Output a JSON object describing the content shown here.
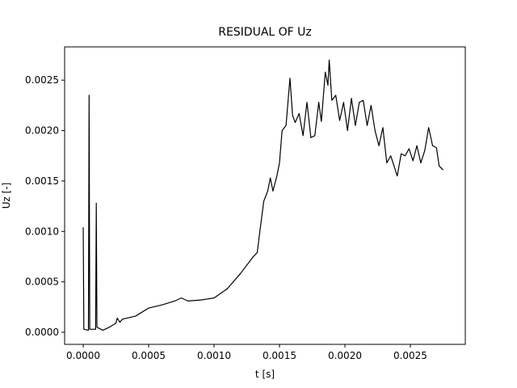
{
  "chart_data": {
    "type": "line",
    "title": "RESIDUAL OF Uz",
    "x_label": "t [s]",
    "y_label": "Uz [-]",
    "color": "#000000",
    "x": [
      0.0,
      5e-06,
      4e-05,
      4.5e-05,
      5e-05,
      9.5e-05,
      0.0001,
      0.000105,
      0.00015,
      0.0002,
      0.00025,
      0.00026,
      0.00028,
      0.0003,
      0.0004,
      0.0005,
      0.0006,
      0.0007,
      0.00075,
      0.0008,
      0.0009,
      0.001,
      0.0011,
      0.0012,
      0.0013,
      0.00133,
      0.00135,
      0.00138,
      0.00141,
      0.00143,
      0.00145,
      0.00148,
      0.0015,
      0.00152,
      0.00155,
      0.00158,
      0.0016,
      0.00162,
      0.00165,
      0.00168,
      0.00171,
      0.00174,
      0.00177,
      0.0018,
      0.00182,
      0.00185,
      0.00187,
      0.00188,
      0.0019,
      0.00193,
      0.00196,
      0.00199,
      0.00202,
      0.00205,
      0.00208,
      0.00211,
      0.00214,
      0.00217,
      0.0022,
      0.00223,
      0.00226,
      0.00229,
      0.00232,
      0.00235,
      0.00238,
      0.0024,
      0.00243,
      0.00246,
      0.00249,
      0.00252,
      0.00255,
      0.00258,
      0.00261,
      0.00264,
      0.00267,
      0.0027,
      0.00272,
      0.00275
    ],
    "values": [
      0.00104,
      3e-05,
      2e-05,
      0.00235,
      3e-05,
      3e-05,
      0.00128,
      5e-05,
      2e-05,
      5e-05,
      9e-05,
      0.00014,
      0.0001,
      0.00013,
      0.00016,
      0.00024,
      0.00027,
      0.00031,
      0.00034,
      0.00031,
      0.00032,
      0.00034,
      0.00043,
      0.00058,
      0.00075,
      0.00079,
      0.001,
      0.0013,
      0.0014,
      0.00153,
      0.0014,
      0.00155,
      0.00168,
      0.002,
      0.00205,
      0.00252,
      0.00215,
      0.00208,
      0.00217,
      0.00195,
      0.00228,
      0.00193,
      0.00195,
      0.00228,
      0.00209,
      0.00258,
      0.00245,
      0.0027,
      0.0023,
      0.00235,
      0.0021,
      0.00228,
      0.002,
      0.00232,
      0.00205,
      0.00228,
      0.0023,
      0.00205,
      0.00225,
      0.002,
      0.00185,
      0.00203,
      0.00168,
      0.00175,
      0.00163,
      0.00155,
      0.00177,
      0.00175,
      0.00182,
      0.0017,
      0.00185,
      0.00168,
      0.0018,
      0.00203,
      0.00185,
      0.00183,
      0.00165,
      0.00161
    ],
    "xlim": [
      -0.000142,
      0.00292
    ],
    "ylim": [
      -0.00012,
      0.00283
    ],
    "xticks": [
      {
        "value": 0,
        "label": "0.0000"
      },
      {
        "value": 0.0005,
        "label": "0.0005"
      },
      {
        "value": 0.001,
        "label": "0.0010"
      },
      {
        "value": 0.0015,
        "label": "0.0015"
      },
      {
        "value": 0.002,
        "label": "0.0020"
      },
      {
        "value": 0.0025,
        "label": "0.0025"
      }
    ],
    "yticks": [
      {
        "value": 0,
        "label": "0.0000"
      },
      {
        "value": 0.0005,
        "label": "0.0005"
      },
      {
        "value": 0.001,
        "label": "0.0010"
      },
      {
        "value": 0.0015,
        "label": "0.0015"
      },
      {
        "value": 0.002,
        "label": "0.0020"
      },
      {
        "value": 0.0025,
        "label": "0.0025"
      }
    ]
  }
}
